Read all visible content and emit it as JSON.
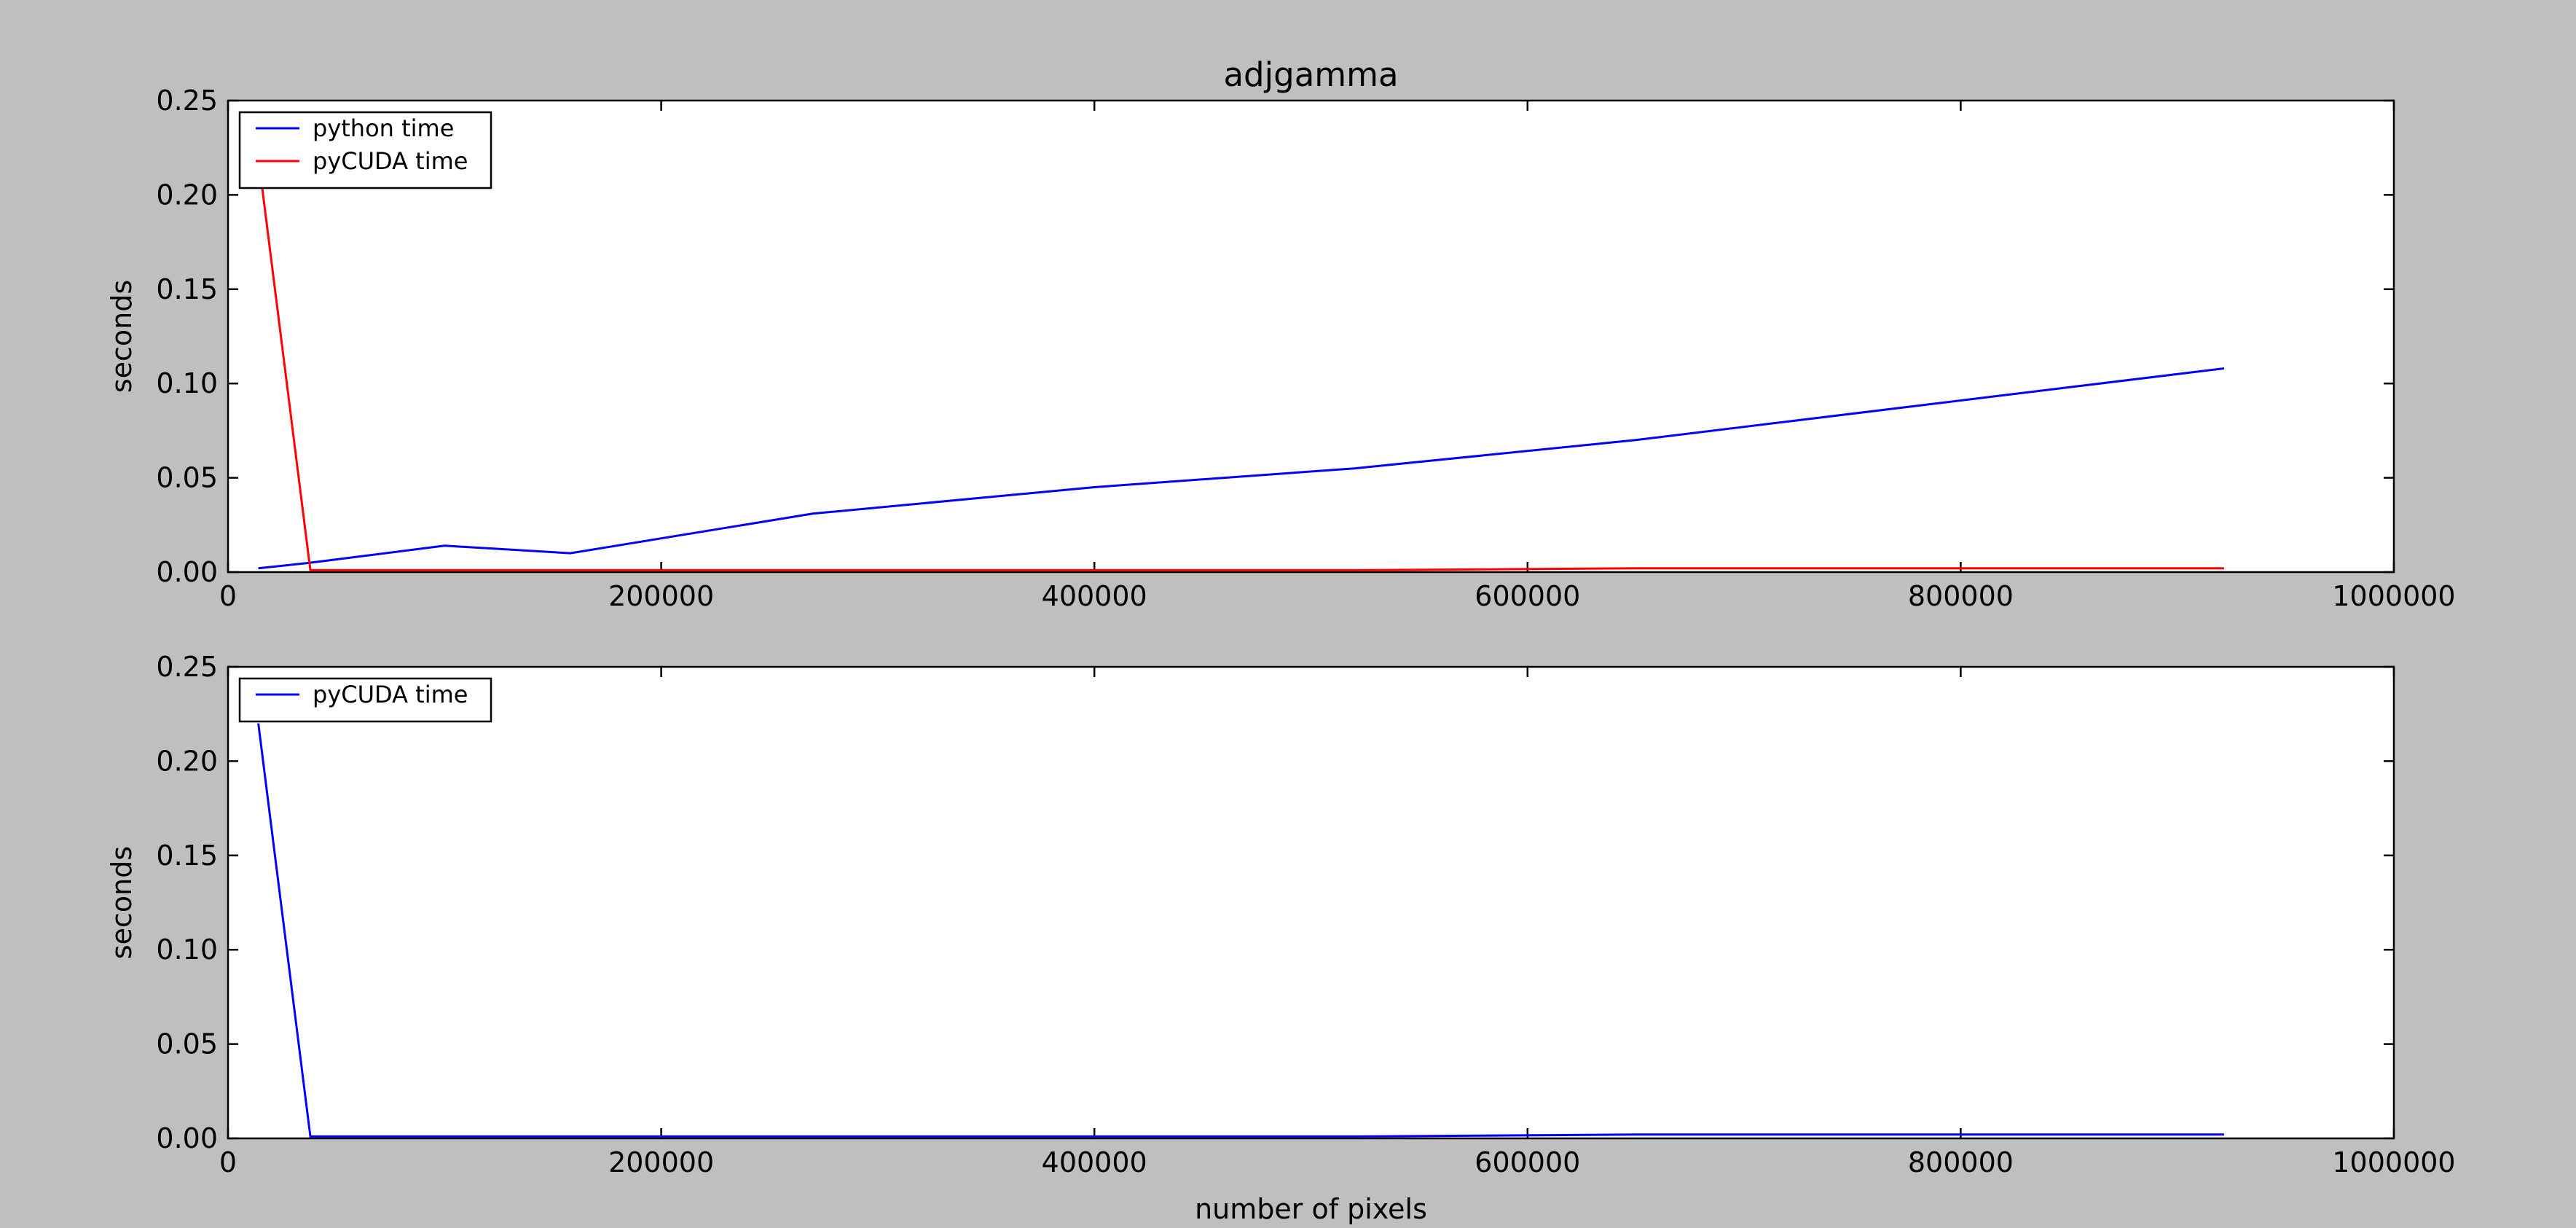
{
  "figure": {
    "background": "#bfbfbf"
  },
  "chart_data": [
    {
      "type": "line",
      "title": "adjgamma",
      "xlabel": "",
      "ylabel": "seconds",
      "xlim": [
        0,
        1000000
      ],
      "ylim": [
        0,
        0.25
      ],
      "xticks": [
        0,
        200000,
        400000,
        600000,
        800000,
        1000000
      ],
      "xtick_labels": [
        "0",
        "200000",
        "400000",
        "600000",
        "800000",
        "1000000"
      ],
      "yticks": [
        0,
        0.05,
        0.1,
        0.15,
        0.2,
        0.25
      ],
      "ytick_labels": [
        "0.00",
        "0.05",
        "0.10",
        "0.15",
        "0.20",
        "0.25"
      ],
      "grid": false,
      "legend": "top-left",
      "series": [
        {
          "name": "python time",
          "color": "#0000ff",
          "x": [
            14000,
            38000,
            100000,
            158000,
            270000,
            400000,
            520000,
            650000,
            800000,
            921600
          ],
          "y": [
            0.002,
            0.005,
            0.014,
            0.01,
            0.031,
            0.045,
            0.055,
            0.07,
            0.091,
            0.108
          ]
        },
        {
          "name": "pyCUDA time",
          "color": "#ff0000",
          "x": [
            14000,
            38000,
            100000,
            158000,
            270000,
            400000,
            520000,
            650000,
            800000,
            921600
          ],
          "y": [
            0.22,
            0.001,
            0.001,
            0.001,
            0.001,
            0.001,
            0.001,
            0.002,
            0.002,
            0.002
          ]
        }
      ]
    },
    {
      "type": "line",
      "title": "",
      "xlabel": "number of pixels",
      "ylabel": "seconds",
      "xlim": [
        0,
        1000000
      ],
      "ylim": [
        0,
        0.25
      ],
      "xticks": [
        0,
        200000,
        400000,
        600000,
        800000,
        1000000
      ],
      "xtick_labels": [
        "0",
        "200000",
        "400000",
        "600000",
        "800000",
        "1000000"
      ],
      "yticks": [
        0,
        0.05,
        0.1,
        0.15,
        0.2,
        0.25
      ],
      "ytick_labels": [
        "0.00",
        "0.05",
        "0.10",
        "0.15",
        "0.20",
        "0.25"
      ],
      "grid": false,
      "legend": "top-left",
      "series": [
        {
          "name": "pyCUDA time",
          "color": "#0000ff",
          "x": [
            14000,
            38000,
            100000,
            158000,
            270000,
            400000,
            520000,
            650000,
            800000,
            921600
          ],
          "y": [
            0.22,
            0.001,
            0.001,
            0.001,
            0.001,
            0.001,
            0.001,
            0.002,
            0.002,
            0.002
          ]
        }
      ]
    }
  ]
}
